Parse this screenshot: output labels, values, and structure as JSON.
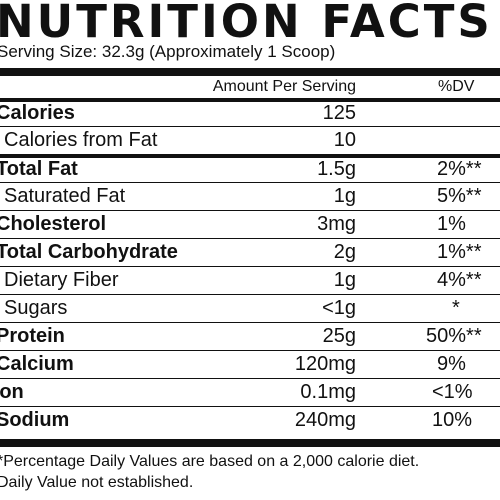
{
  "label": {
    "title": "NUTRITION FACTS",
    "serving_size": "Serving Size: 32.3g (Approximately 1 Scoop)",
    "header_amount": "Amount Per Serving",
    "header_dv": "%DV"
  },
  "rows": [
    {
      "name": "Calories",
      "amount": "125",
      "dv": ""
    },
    {
      "name": "Calories from Fat",
      "amount": "10",
      "dv": ""
    },
    {
      "name": "Total Fat",
      "amount": "1.5g",
      "dv": "2%**"
    },
    {
      "name": "Saturated Fat",
      "amount": "1g",
      "dv": "5%**"
    },
    {
      "name": "Cholesterol",
      "amount": "3mg",
      "dv": "1%"
    },
    {
      "name": "Total Carbohydrate",
      "amount": "2g",
      "dv": "1%**"
    },
    {
      "name": "Dietary Fiber",
      "amount": "1g",
      "dv": "4%**"
    },
    {
      "name": "Sugars",
      "amount": "<1g",
      "dv": "*"
    },
    {
      "name": "Protein",
      "amount": "25g",
      "dv": "50%**"
    },
    {
      "name": "Calcium",
      "amount": "120mg",
      "dv": "9%"
    },
    {
      "name": "Iron",
      "amount": "0.1mg",
      "dv": "<1%"
    },
    {
      "name": "Sodium",
      "amount": "240mg",
      "dv": "10%"
    }
  ],
  "footnotes": [
    "*Percentage Daily Values are based on a 2,000 calorie diet.",
    "Daily Value not established."
  ]
}
